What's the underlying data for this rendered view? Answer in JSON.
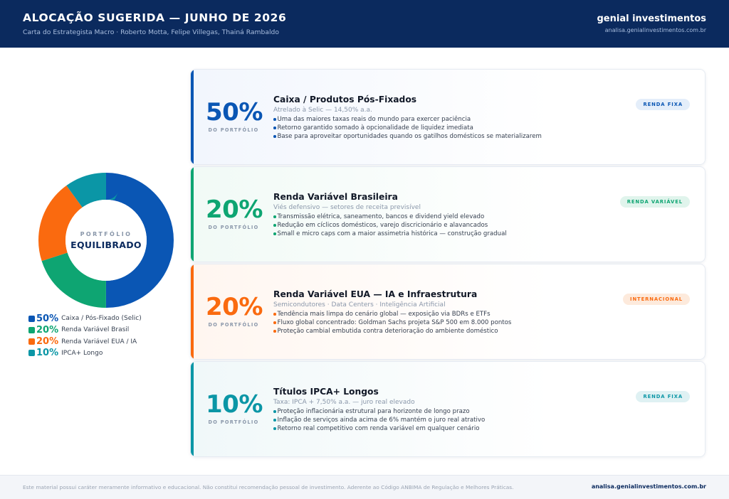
{
  "header": {
    "title": "ALOCAÇÃO SUGERIDA — JUNHO DE 2026",
    "subtitle": "Carta do Estrategista Macro · Roberto Motta, Felipe Villegas, Thainá Rambaldo",
    "brand": "genial investimentos",
    "brand_url": "analisa.genialinvestimentos.com.br"
  },
  "donut": {
    "caption": "PORTFÓLIO",
    "label": "EQUILIBRADO"
  },
  "chart_data": {
    "type": "pie",
    "categories": [
      "Caixa / Pós-Fixado (Selic)",
      "Renda Variável Brasil",
      "Renda Variável EUA / IA",
      "IPCA+ Longo"
    ],
    "values": [
      50,
      20,
      20,
      10
    ],
    "colors": [
      "#0a56b4",
      "#0ea572",
      "#fa6a0f",
      "#0b96a6"
    ]
  },
  "legend": [
    {
      "pct": "50%",
      "label": "Caixa / Pós-Fixado (Selic)",
      "color": "#0a56b4"
    },
    {
      "pct": "20%",
      "label": "Renda Variável Brasil",
      "color": "#0ea572"
    },
    {
      "pct": "20%",
      "label": "Renda Variável EUA / IA",
      "color": "#fa6a0f"
    },
    {
      "pct": "10%",
      "label": "IPCA+ Longo",
      "color": "#0b96a6"
    }
  ],
  "cards": [
    {
      "pct": "50%",
      "pct_caption": "DO PORTFÓLIO",
      "title": "Caixa / Produtos Pós-Fixados",
      "subtitle": "Atrelado à Selic — 14,50% a.a.",
      "bullets": [
        "Uma das maiores taxas reais do mundo para exercer paciência",
        "Retorno garantido somado à opcionalidade de liquidez imediata",
        "Base para aproveitar oportunidades quando os gatilhos domésticos se materializarem"
      ],
      "badge": "RENDA FIXA",
      "color": "#0a56b4",
      "tint": "#f2f6fd",
      "badge_bg": "#e4eefa"
    },
    {
      "pct": "20%",
      "pct_caption": "DO PORTFÓLIO",
      "title": "Renda Variável Brasileira",
      "subtitle": "Viés defensivo — setores de receita previsível",
      "bullets": [
        "Transmissão elétrica, saneamento, bancos e dividend yield elevado",
        "Redução em cíclicos domésticos, varejo discricionário e alavancados",
        "Small e micro caps com a maior assimetria histórica — construção gradual"
      ],
      "badge": "RENDA VARIÁVEL",
      "color": "#0ea572",
      "tint": "#f1faf6",
      "badge_bg": "#e0f4ec"
    },
    {
      "pct": "20%",
      "pct_caption": "DO PORTFÓLIO",
      "title": "Renda Variável EUA — IA e Infraestrutura",
      "subtitle": "Semicondutores · Data Centers · Inteligência Artificial",
      "bullets": [
        "Tendência mais limpa do cenário global — exposição via BDRs e ETFs",
        "Fluxo global concentrado: Goldman Sachs projeta S&P 500 em 8.000 pontos",
        "Proteção cambial embutida contra deterioração do ambiente doméstico"
      ],
      "badge": "INTERNACIONAL",
      "color": "#fa6a0f",
      "tint": "#fff6f0",
      "badge_bg": "#fdeadc"
    },
    {
      "pct": "10%",
      "pct_caption": "DO PORTFÓLIO",
      "title": "Títulos IPCA+ Longos",
      "subtitle": "Taxa: IPCA + 7,50% a.a. — juro real elevado",
      "bullets": [
        "Proteção inflacionária estrutural para horizonte de longo prazo",
        "Inflação de serviços ainda acima de 6% mantém o juro real atrativo",
        "Retorno real competitivo com renda variável em qualquer cenário"
      ],
      "badge": "RENDA FIXA",
      "color": "#0b96a6",
      "tint": "#f0f8f9",
      "badge_bg": "#dff1f3"
    }
  ],
  "footer": {
    "disclaimer": "Este material possui caráter meramente informativo e educacional. Não constitui recomendação pessoal de investimento. Aderente ao Código ANBIMA de Regulação e Melhores Práticas.",
    "link": "analisa.genialinvestimentos.com.br"
  }
}
